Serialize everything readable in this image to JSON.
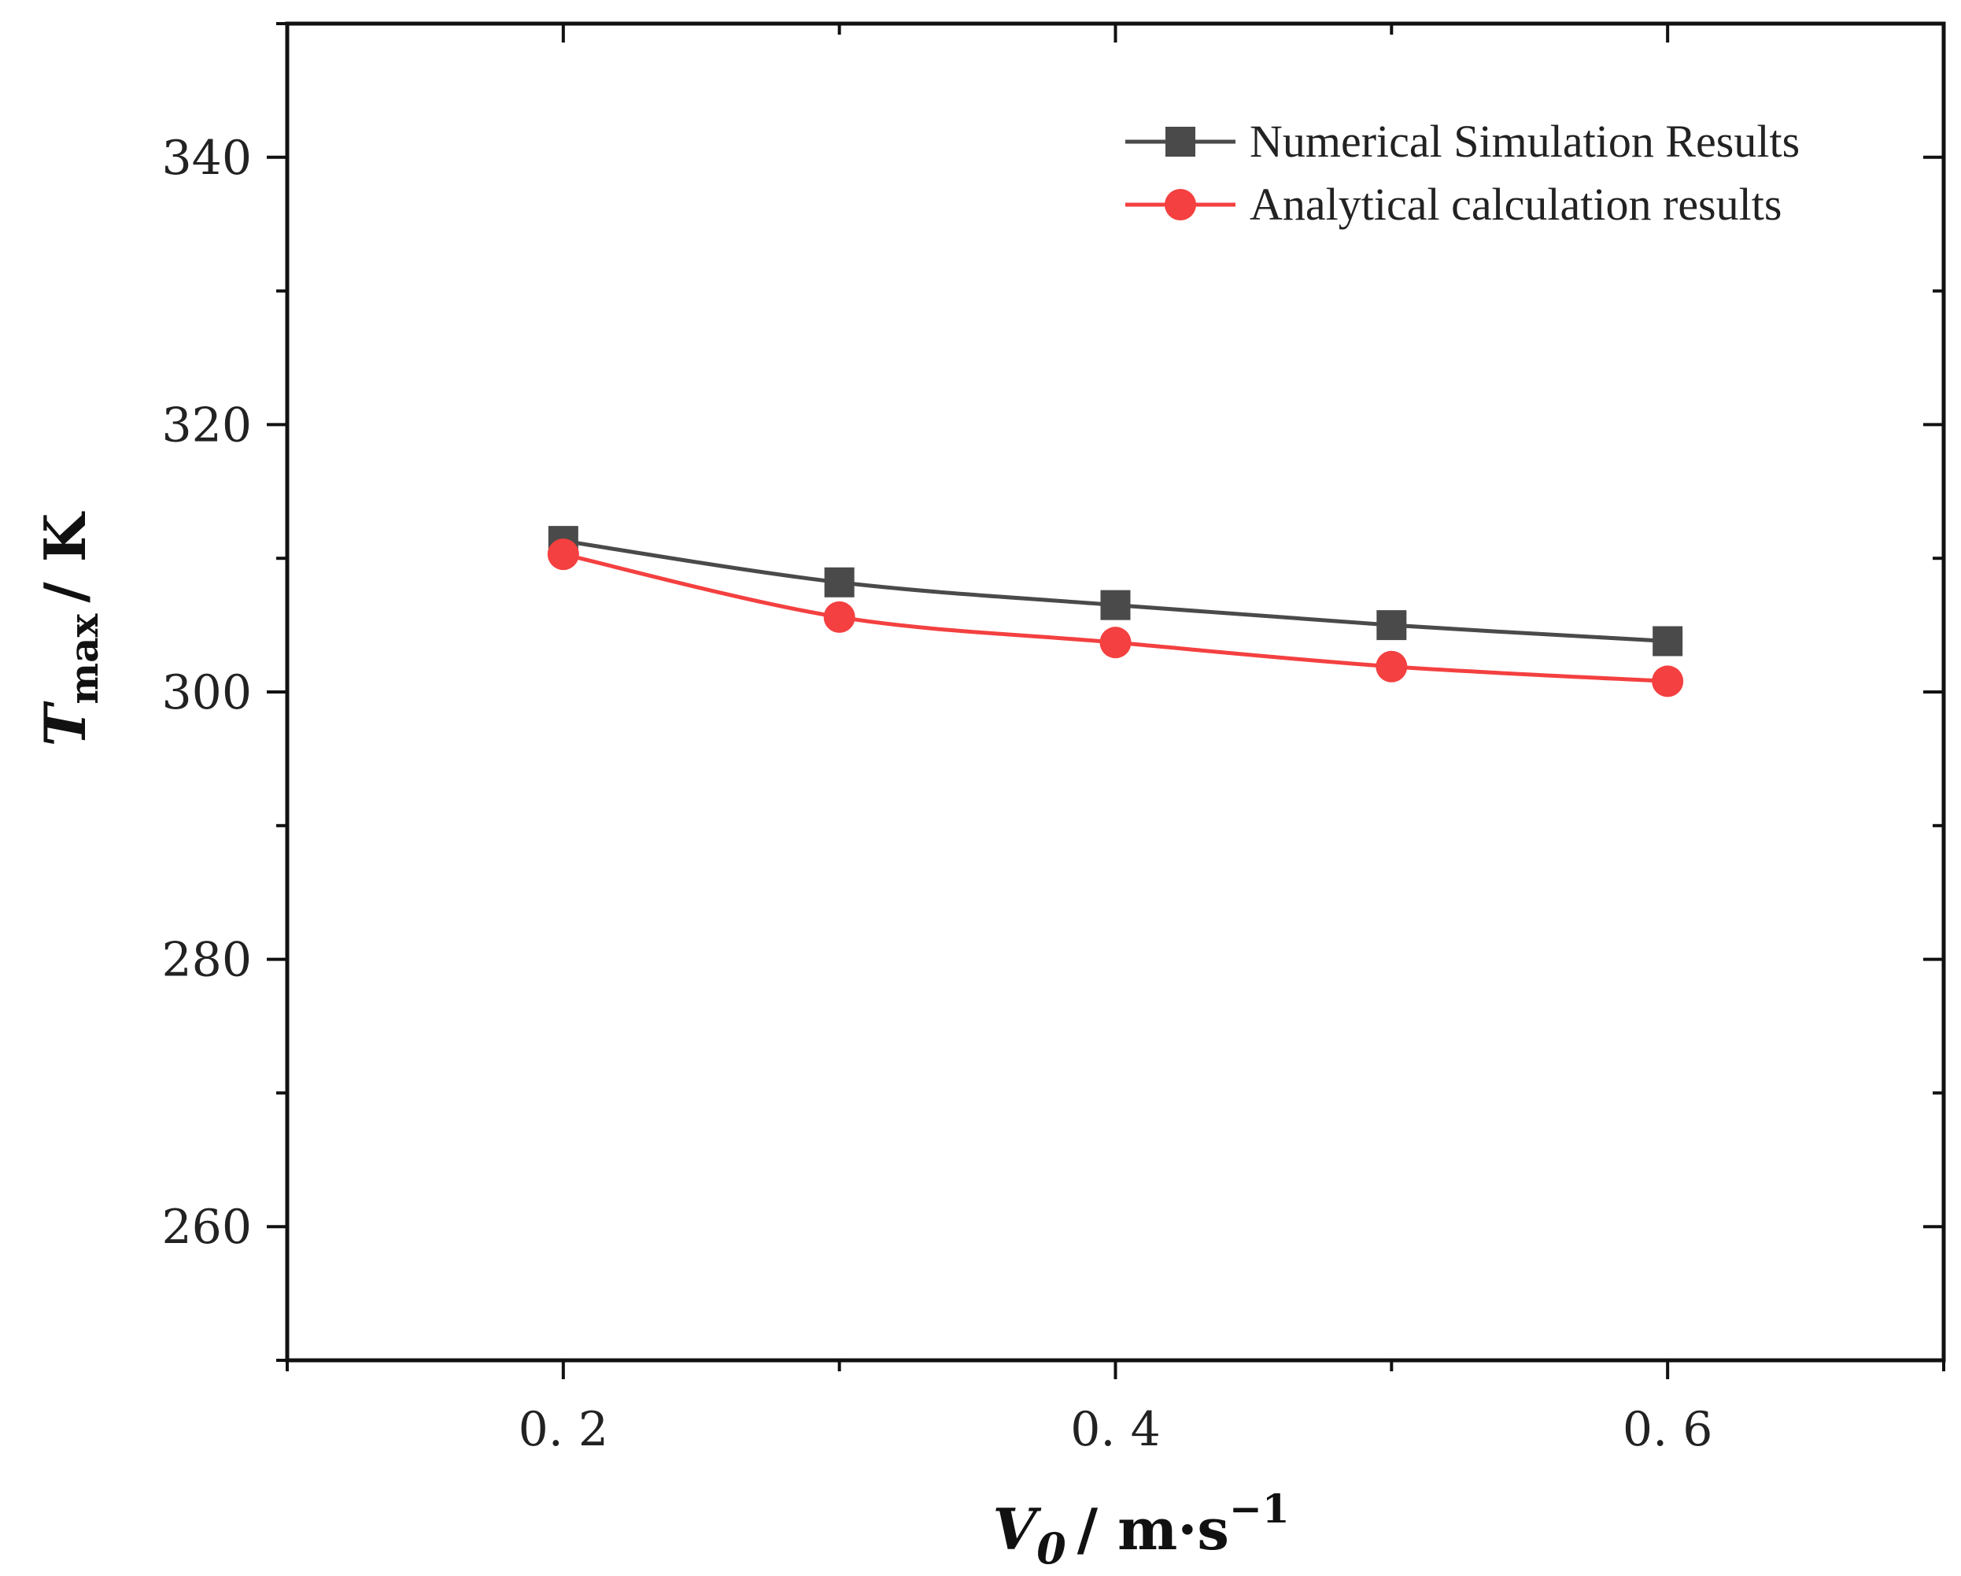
{
  "chart_data": {
    "type": "line",
    "title": "",
    "x": [
      0.2,
      0.3,
      0.4,
      0.5,
      0.6
    ],
    "series": [
      {
        "name": "Numerical Simulation Results",
        "values": [
          311.3,
          308.2,
          306.5,
          305.0,
          303.8
        ],
        "color": "#4a4a4a",
        "marker": "square"
      },
      {
        "name": "Analytical calculation results",
        "values": [
          310.3,
          305.6,
          303.7,
          301.9,
          300.8
        ],
        "color": "#f44040",
        "marker": "circle"
      }
    ],
    "xlim": [
      0.1,
      0.7
    ],
    "ylim": [
      250,
      350
    ],
    "xticks": [
      0.2,
      0.4,
      0.6
    ],
    "xtick_labels": [
      "0. 2",
      "0. 4",
      "0. 6"
    ],
    "yticks": [
      260,
      280,
      300,
      320,
      340
    ],
    "ytick_labels": [
      "260",
      "280",
      "300",
      "320",
      "340"
    ],
    "xlabel": {
      "symbol": "V",
      "subscript": "0",
      "unit": "/ m·s",
      "superscript": "−1"
    },
    "ylabel": {
      "symbol": "T",
      "subscript": "max",
      "unit": "/ K"
    },
    "legend_position": "top-right",
    "grid": false
  }
}
